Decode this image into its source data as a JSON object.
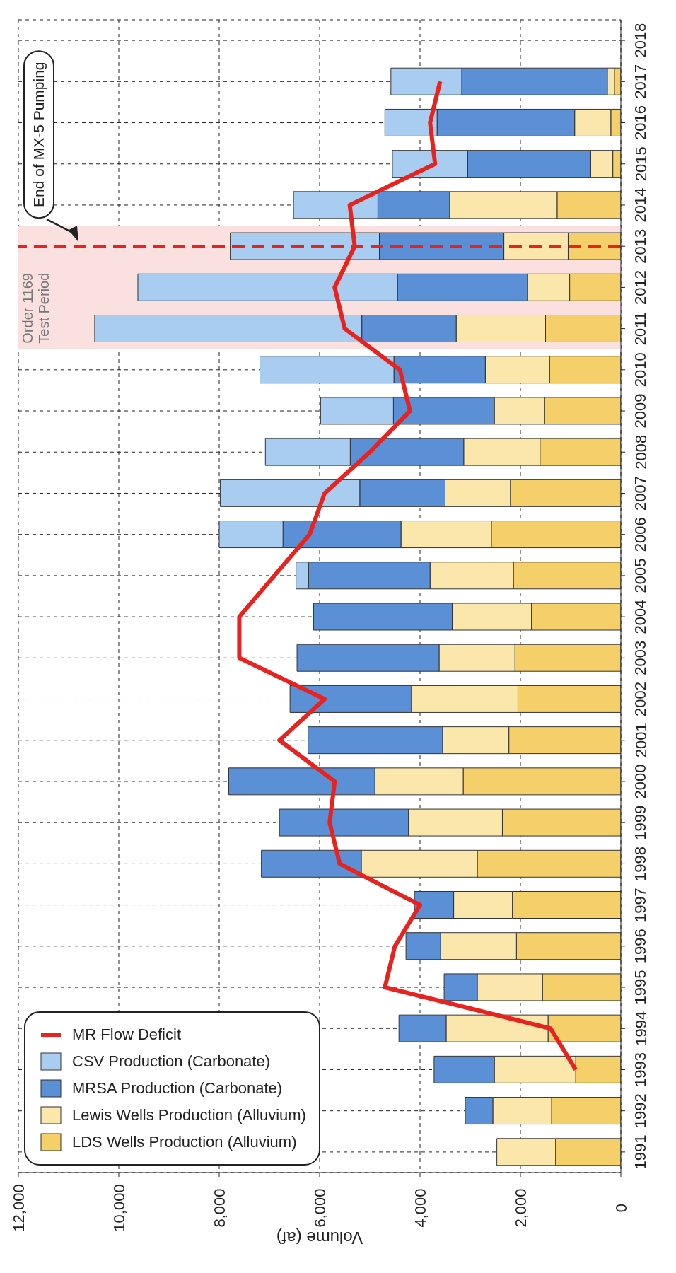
{
  "chart_data": {
    "type": "bar",
    "stacked": true,
    "orientation": "horizontal",
    "xlabel": "Volume (af)",
    "categories": [
      "2018",
      "2017",
      "2016",
      "2015",
      "2014",
      "2013",
      "2012",
      "2011",
      "2010",
      "2009",
      "2008",
      "2007",
      "2006",
      "2005",
      "2004",
      "2003",
      "2002",
      "2001",
      "2000",
      "1999",
      "1998",
      "1997",
      "1996",
      "1995",
      "1994",
      "1993",
      "1992",
      "1991"
    ],
    "series": [
      {
        "name": "LDS Wells Production (Alluvium)",
        "color": "#f5cf6a",
        "values": [
          null,
          130,
          200,
          160,
          1270,
          1050,
          1020,
          1500,
          1420,
          1520,
          1610,
          2200,
          2580,
          2140,
          1780,
          2110,
          2050,
          2230,
          3140,
          2360,
          2860,
          2160,
          2080,
          1560,
          1450,
          900,
          1380,
          1300
        ]
      },
      {
        "name": "Lewis Wells Production (Alluvium)",
        "color": "#fbe7ac",
        "values": [
          null,
          140,
          720,
          440,
          2140,
          1280,
          840,
          1780,
          1280,
          1000,
          1520,
          1300,
          1800,
          1660,
          1580,
          1510,
          2120,
          1320,
          1760,
          1870,
          2310,
          1170,
          1510,
          1300,
          2030,
          1620,
          1170,
          1170
        ]
      },
      {
        "name": "MRSA Production (Carbonate)",
        "color": "#5b8fd6",
        "values": [
          null,
          2900,
          2740,
          2450,
          1430,
          2480,
          2590,
          1880,
          1820,
          2010,
          2260,
          1700,
          2350,
          2420,
          2760,
          2830,
          2420,
          2680,
          2910,
          2570,
          1990,
          780,
          690,
          660,
          940,
          1200,
          550,
          0
        ]
      },
      {
        "name": "CSV Production (Carbonate)",
        "color": "#a9cdf0",
        "values": [
          null,
          1410,
          1040,
          1500,
          1680,
          2970,
          5170,
          5320,
          2670,
          1450,
          1690,
          2780,
          1270,
          250,
          0,
          0,
          0,
          0,
          0,
          0,
          0,
          0,
          0,
          0,
          0,
          0,
          0,
          0
        ]
      },
      {
        "name": "MR Flow Deficit",
        "type": "line",
        "color": "#e8231f",
        "values": [
          null,
          3600,
          3800,
          3700,
          5400,
          5300,
          5700,
          5500,
          4400,
          4200,
          5000,
          5900,
          6200,
          6900,
          7600,
          7600,
          5900,
          6800,
          5700,
          5800,
          5600,
          4000,
          4500,
          4700,
          1400,
          900,
          null,
          null
        ]
      }
    ],
    "xlim": [
      12000,
      0
    ],
    "xticks": [
      {
        "value": 12000,
        "label": "12,000"
      },
      {
        "value": 10000,
        "label": "10,000"
      },
      {
        "value": 8000,
        "label": "8,000"
      },
      {
        "value": 6000,
        "label": "6,000"
      },
      {
        "value": 4000,
        "label": "4,000"
      },
      {
        "value": 2000,
        "label": "2,000"
      },
      0
    ],
    "grid": true,
    "legend": "bottom left",
    "line_style": "solid",
    "marker": "none",
    "bands": [
      {
        "axis": "y",
        "from": "2013",
        "to": "2011",
        "label": "Order 1169 Test Period",
        "color": "#fbe0e0"
      }
    ],
    "ref_lines": [
      {
        "axis": "y",
        "value": "2013",
        "label": "End of MX-5 Pumping",
        "color": "#e8231f",
        "line_style": "dashed"
      }
    ]
  }
}
